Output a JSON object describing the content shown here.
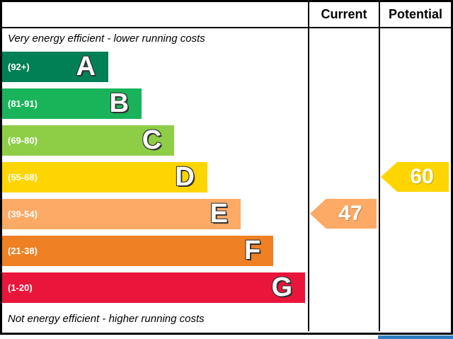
{
  "header": {
    "current_label": "Current",
    "potential_label": "Potential"
  },
  "captions": {
    "top": "Very energy efficient - lower running costs",
    "bottom": "Not energy efficient - higher running costs"
  },
  "chart_data": {
    "type": "bar",
    "categories": [
      "A",
      "B",
      "C",
      "D",
      "E",
      "F",
      "G"
    ],
    "ranges": [
      "(92+)",
      "(81-91)",
      "(69-80)",
      "(55-68)",
      "(39-54)",
      "(21-38)",
      "(1-20)"
    ],
    "colors": [
      "#008054",
      "#19b459",
      "#8dce46",
      "#ffd500",
      "#fcaa65",
      "#ef8023",
      "#e9153b"
    ],
    "bar_width_pct": [
      34.7,
      45.6,
      56.3,
      67.1,
      78.0,
      88.7,
      99.1
    ],
    "current": {
      "value": "47",
      "band": "E",
      "band_index": 4,
      "color": "#fcaa65"
    },
    "potential": {
      "value": "60",
      "band": "D",
      "band_index": 3,
      "color": "#ffd500"
    }
  },
  "misc": {
    "eu_box_edge_color": "#2f7fc1"
  }
}
